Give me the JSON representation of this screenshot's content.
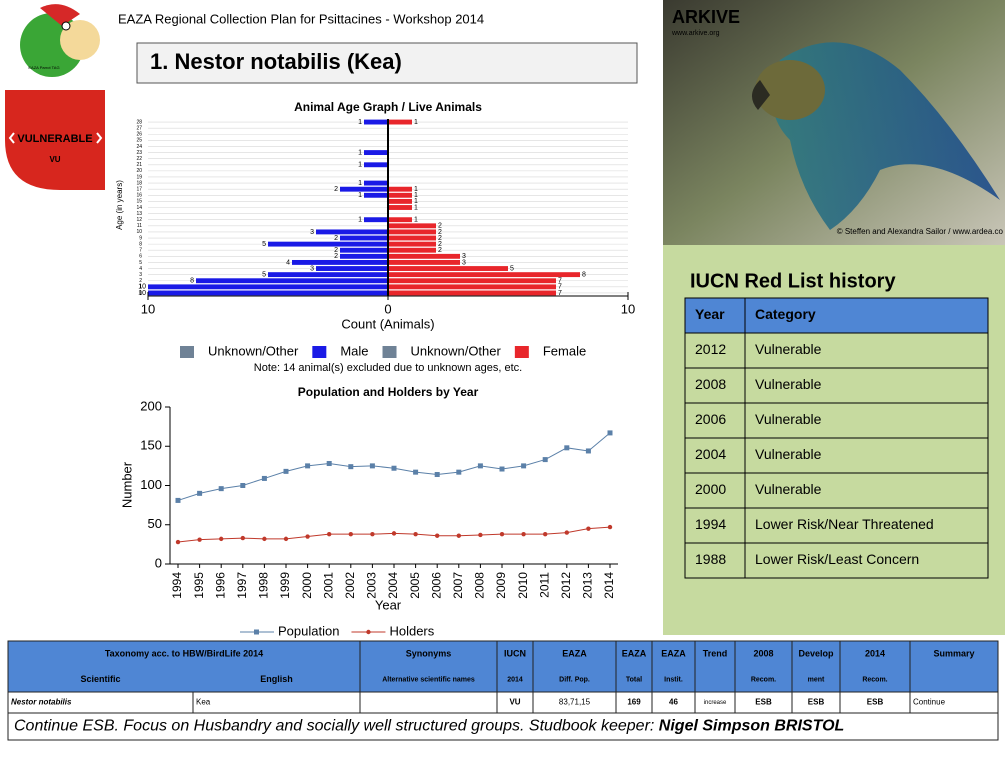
{
  "header": {
    "workshop": "EAZA Regional Collection Plan for Psittacines - Workshop 2014",
    "title": "1. Nestor notabilis (Kea)"
  },
  "logo": {
    "text": "EAZA Parrot TAG"
  },
  "badge": {
    "label": "VULNERABLE",
    "code": "VU"
  },
  "photo": {
    "brand": "ARKIVE",
    "url": "www.arkive.org",
    "credit": "© Steffen and Alexandra Sailor / www.ardea.co"
  },
  "chart_data": [
    {
      "type": "pyramid",
      "title": "Animal Age Graph / Live Animals",
      "x_label": "Count (Animals)",
      "y_label": "Age (in years)",
      "categories": [
        "0",
        "1",
        "2",
        "3",
        "4",
        "5",
        "6",
        "7",
        "8",
        "9",
        "10",
        "11",
        "12",
        "13",
        "14",
        "15",
        "16",
        "17",
        "18",
        "19",
        "20",
        "21",
        "22",
        "23",
        "24",
        "25",
        "26",
        "27",
        "28"
      ],
      "series": [
        {
          "name": "Male",
          "color": "#1a1ae6",
          "side": "left",
          "values": [
            10,
            10,
            8,
            5,
            3,
            4,
            2,
            2,
            5,
            2,
            3,
            0,
            1,
            0,
            0,
            0,
            1,
            2,
            1,
            0,
            0,
            1,
            0,
            1,
            0,
            0,
            0,
            0,
            1
          ]
        },
        {
          "name": "Female",
          "color": "#e8262b",
          "side": "right",
          "values": [
            7,
            7,
            7,
            8,
            5,
            3,
            3,
            2,
            2,
            2,
            2,
            2,
            1,
            0,
            1,
            1,
            1,
            1,
            0,
            0,
            0,
            0,
            0,
            0,
            0,
            0,
            0,
            0,
            1
          ]
        }
      ],
      "legend": [
        {
          "name": "Unknown/Other",
          "color": "#6f8296"
        },
        {
          "name": "Male",
          "color": "#1a1ae6"
        },
        {
          "name": "Unknown/Other",
          "color": "#6f8296"
        },
        {
          "name": "Female",
          "color": "#e8262b"
        }
      ],
      "note": "Note: 14 animal(s) excluded due to unknown ages, etc.",
      "xlim": [
        -10,
        10
      ],
      "xticks": [
        {
          "value": -10,
          "label": "10"
        },
        0,
        10
      ]
    },
    {
      "type": "line",
      "title": "Population and Holders by Year",
      "x_label": "Year",
      "y_label": "Number",
      "categories": [
        "1994",
        "1995",
        "1996",
        "1997",
        "1998",
        "1999",
        "2000",
        "2001",
        "2002",
        "2003",
        "2004",
        "2005",
        "2006",
        "2007",
        "2008",
        "2009",
        "2010",
        "2011",
        "2012",
        "2013",
        "2014"
      ],
      "series": [
        {
          "name": "Population",
          "color": "#5b80a8",
          "marker": "square",
          "values": [
            81,
            90,
            96,
            100,
            109,
            118,
            125,
            128,
            124,
            125,
            122,
            117,
            114,
            117,
            125,
            121,
            125,
            133,
            148,
            144,
            167
          ]
        },
        {
          "name": "Holders",
          "color": "#c0392b",
          "marker": "circle",
          "values": [
            28,
            31,
            32,
            33,
            32,
            32,
            35,
            38,
            38,
            38,
            39,
            38,
            36,
            36,
            37,
            38,
            38,
            38,
            40,
            45,
            47
          ]
        }
      ],
      "ylim": [
        0,
        200
      ],
      "yticks": [
        0,
        50,
        100,
        150,
        200
      ]
    }
  ],
  "iucn_history": {
    "title": "IUCN Red List history",
    "columns": [
      "Year",
      "Category"
    ],
    "rows": [
      [
        "2012",
        "Vulnerable"
      ],
      [
        "2008",
        "Vulnerable"
      ],
      [
        "2006",
        "Vulnerable"
      ],
      [
        "2004",
        "Vulnerable"
      ],
      [
        "2000",
        "Vulnerable"
      ],
      [
        "1994",
        "Lower Risk/Near Threatened"
      ],
      [
        "1988",
        "Lower Risk/Least Concern"
      ]
    ]
  },
  "bottom_table": {
    "taxonomy": "Taxonomy acc. to HBW/BirdLife 2014",
    "columns": [
      {
        "bottom": "Scientific"
      },
      {
        "bottom": "English"
      },
      {
        "top": "Synonyms",
        "bottom": "Alternative scientific names"
      },
      {
        "top": "IUCN",
        "bottom": "2014"
      },
      {
        "top": "EAZA",
        "bottom": "Diff. Pop."
      },
      {
        "top": "EAZA",
        "bottom": "Total"
      },
      {
        "top": "EAZA",
        "bottom": "Instit."
      },
      {
        "top": "Trend"
      },
      {
        "top": "2008",
        "bottom": "Recom."
      },
      {
        "top": "Develop",
        "bottom": "ment"
      },
      {
        "top": "2014",
        "bottom": "Recom."
      },
      {
        "top": "Summary"
      }
    ],
    "row": [
      "Nestor notabilis",
      "Kea",
      null,
      "VU",
      "83,71,15",
      "169",
      "46",
      "increase",
      "ESB",
      "ESB",
      "ESB",
      "Continue"
    ],
    "note": "Continue ESB. Focus on Husbandry and socially well structured groups. Studbook keeper: ",
    "keeper": "Nigel Simpson BRISTOL"
  }
}
